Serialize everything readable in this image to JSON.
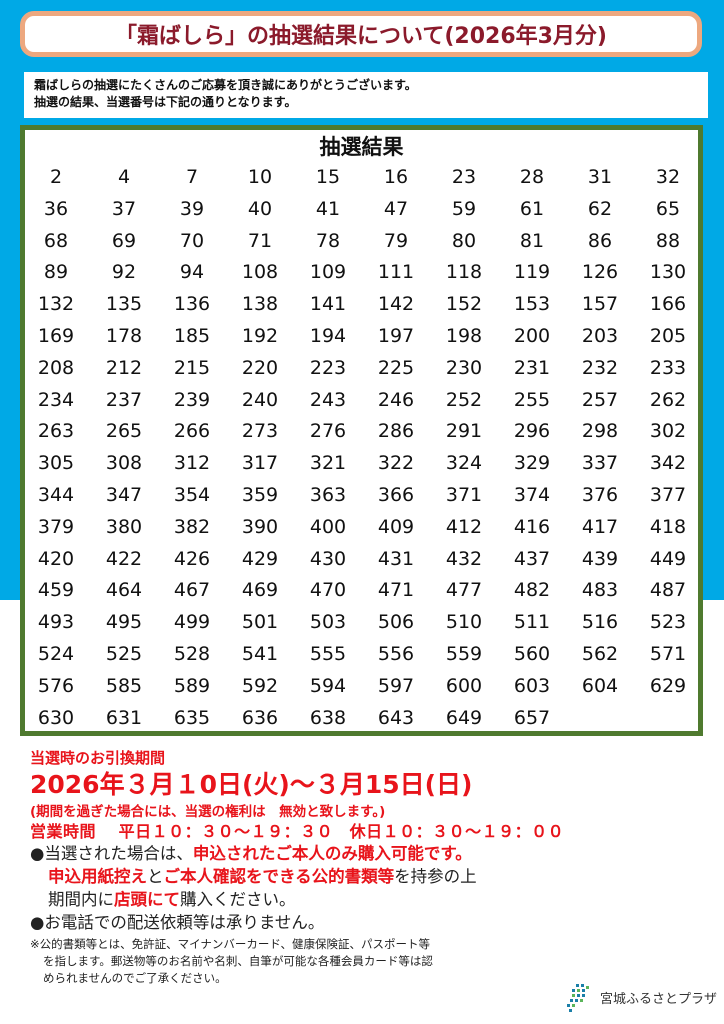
{
  "title": "「霜ばしら」の抽選結果について(2026年3月分)",
  "intro": [
    "霜ばしらの抽選にたくさんのご応募を頂き誠にありがとうございます。",
    "抽選の結果、当選番号は下記の通りとなります。"
  ],
  "results": {
    "heading": "抽選結果",
    "numbers": [
      2,
      4,
      7,
      10,
      15,
      16,
      23,
      28,
      31,
      32,
      36,
      37,
      39,
      40,
      41,
      47,
      59,
      61,
      62,
      65,
      68,
      69,
      70,
      71,
      78,
      79,
      80,
      81,
      86,
      88,
      89,
      92,
      94,
      108,
      109,
      111,
      118,
      119,
      126,
      130,
      132,
      135,
      136,
      138,
      141,
      142,
      152,
      153,
      157,
      166,
      169,
      178,
      185,
      192,
      194,
      197,
      198,
      200,
      203,
      205,
      208,
      212,
      215,
      220,
      223,
      225,
      230,
      231,
      232,
      233,
      234,
      237,
      239,
      240,
      243,
      246,
      252,
      255,
      257,
      262,
      263,
      265,
      266,
      273,
      276,
      286,
      291,
      296,
      298,
      302,
      305,
      308,
      312,
      317,
      321,
      322,
      324,
      329,
      337,
      342,
      344,
      347,
      354,
      359,
      363,
      366,
      371,
      374,
      376,
      377,
      379,
      380,
      382,
      390,
      400,
      409,
      412,
      416,
      417,
      418,
      420,
      422,
      426,
      429,
      430,
      431,
      432,
      437,
      439,
      449,
      459,
      464,
      467,
      469,
      470,
      471,
      477,
      482,
      483,
      487,
      493,
      495,
      499,
      501,
      503,
      506,
      510,
      511,
      516,
      523,
      524,
      525,
      528,
      541,
      555,
      556,
      559,
      560,
      562,
      571,
      576,
      585,
      589,
      592,
      594,
      597,
      600,
      603,
      604,
      629,
      630,
      631,
      635,
      636,
      638,
      643,
      649,
      657
    ]
  },
  "exchange": {
    "label": "当選時のお引換期間",
    "period": "2026年３月１0日(火)～３月15日(日)",
    "warning": "(期間を過ぎた場合には、当選の権利は　無効と致します。)",
    "hours": "営業時間　 平日１０：３０～１９：３０　休日１０：３０～１９：００"
  },
  "bullets": {
    "b1_prefix": "●当選された場合は、",
    "b1_red": "申込されたご本人のみ購入可能です。",
    "b2_red1": "申込用紙控え",
    "b2_mid": "と",
    "b2_red2": "ご本人確認をできる公的書類等",
    "b2_end": "を持参の上",
    "b3_start": "期間内に",
    "b3_red": "店頭にて",
    "b3_end": "購入ください。",
    "b4": "●お電話での配送依頼等は承りません。"
  },
  "note": [
    "※公的書類等とは、免許証、マイナンバーカード、健康保険証、パスポート等",
    "を指します。郵送物等のお名前や名刺、自筆が可能な各種会員カード等は認",
    "められませんのでご了承ください。"
  ],
  "logo": "宮城ふるさとプラザ",
  "colors": {
    "background": "#00a9e6",
    "title_border": "#eda87f",
    "title_text": "#8b1a2b",
    "results_border": "#4f7a2f",
    "accent_red": "#e8141b"
  }
}
